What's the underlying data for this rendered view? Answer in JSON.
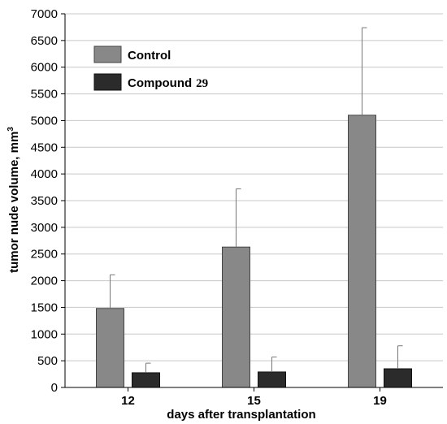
{
  "chart_data": {
    "type": "bar",
    "categories": [
      "12",
      "15",
      "19"
    ],
    "series": [
      {
        "name": "Control",
        "values": [
          1480,
          2630,
          5100
        ],
        "errors": [
          630,
          1090,
          1640
        ],
        "color": "#888888"
      },
      {
        "name": "Compound 29",
        "values": [
          275,
          290,
          350
        ],
        "errors": [
          180,
          280,
          430
        ],
        "color": "#2b2b2b"
      }
    ],
    "xlabel": "days after transplantation",
    "ylabel": "tumor nude volume, mm",
    "ylabel_superscript": "3",
    "ylim": [
      0,
      7000
    ],
    "yticks": [
      0,
      500,
      1000,
      1500,
      2000,
      2500,
      3000,
      3500,
      4000,
      4500,
      5000,
      5500,
      6000,
      6500,
      7000
    ],
    "grid": true,
    "legend_position": "top-left",
    "legend_labels": {
      "control": "Control",
      "compound_text": "Compound",
      "compound_number": "29"
    }
  }
}
